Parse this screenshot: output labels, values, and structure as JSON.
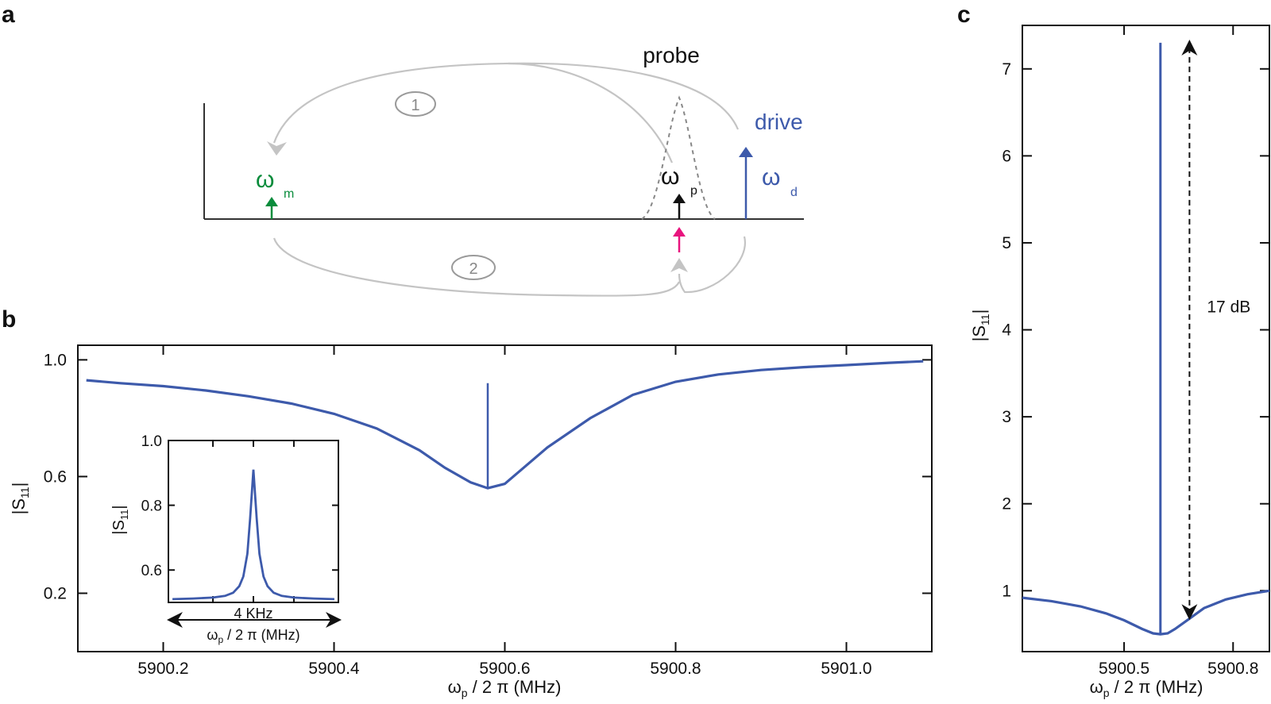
{
  "panels": {
    "a": "a",
    "b": "b",
    "c": "c"
  },
  "colors": {
    "trace": "#3d5aab",
    "mechanical": "#0a8c3c",
    "drive": "#3d5aab",
    "probe": "#111111",
    "pink_arrow": "#e8147e",
    "process_path": "#c4c4c4",
    "text": "#111111"
  },
  "schematic": {
    "probe_label": "probe",
    "drive_label": "drive",
    "omega_m": {
      "symbol": "ω",
      "sub": "m"
    },
    "omega_p": {
      "symbol": "ω",
      "sub": "p"
    },
    "omega_d": {
      "symbol": "ω",
      "sub": "d"
    },
    "process_1": "1",
    "process_2": "2"
  },
  "chart_data": [
    {
      "panel": "b",
      "type": "line",
      "xlabel": {
        "main": "ω",
        "sub": "p",
        "rest": " / 2 π (MHz)"
      },
      "ylabel": {
        "main": "|S",
        "sub": "11",
        "end": "|"
      },
      "xlim": [
        5900.1,
        5901.1
      ],
      "ylim": [
        0.0,
        1.05
      ],
      "xticks": [
        5900.2,
        5900.4,
        5900.6,
        5900.8,
        5901.0
      ],
      "xtick_labels": [
        "5900.2",
        "5900.4",
        "5900.6",
        "5900.8",
        "5901.0"
      ],
      "yticks": [
        0.2,
        0.6,
        1.0
      ],
      "ytick_labels": [
        "0.2",
        "0.6",
        "1.0"
      ],
      "series": [
        {
          "x": [
            5900.11,
            5900.15,
            5900.2,
            5900.25,
            5900.3,
            5900.35,
            5900.4,
            5900.45,
            5900.5,
            5900.53,
            5900.56,
            5900.58,
            5900.6,
            5900.62,
            5900.65,
            5900.7,
            5900.75,
            5900.8,
            5900.85,
            5900.9,
            5900.95,
            5901.0,
            5901.05,
            5901.09
          ],
          "y": [
            0.93,
            0.92,
            0.91,
            0.895,
            0.875,
            0.85,
            0.815,
            0.765,
            0.69,
            0.63,
            0.58,
            0.56,
            0.575,
            0.625,
            0.7,
            0.8,
            0.88,
            0.925,
            0.95,
            0.965,
            0.975,
            0.982,
            0.99,
            0.995
          ]
        }
      ],
      "peak": {
        "x": 5900.58,
        "y_base": 0.56,
        "y_top": 0.92
      },
      "inset": {
        "type": "line",
        "ylabel": {
          "main": "|S",
          "sub": "11",
          "end": "|"
        },
        "xlabel": {
          "main": "ω",
          "sub": "p",
          "rest": " / 2 π (MHz)"
        },
        "span_label": "4 KHz",
        "ylim": [
          0.5,
          1.0
        ],
        "yticks": [
          0.6,
          0.8,
          1.0
        ],
        "ytick_labels": [
          "0.6",
          "0.8",
          "1.0"
        ],
        "x": [
          -2,
          -1.5,
          -1,
          -0.7,
          -0.5,
          -0.35,
          -0.25,
          -0.15,
          -0.08,
          0,
          0.08,
          0.15,
          0.25,
          0.35,
          0.5,
          0.7,
          1,
          1.5,
          2
        ],
        "y": [
          0.51,
          0.512,
          0.515,
          0.52,
          0.53,
          0.55,
          0.58,
          0.65,
          0.76,
          0.91,
          0.76,
          0.65,
          0.58,
          0.55,
          0.53,
          0.52,
          0.515,
          0.512,
          0.51
        ]
      }
    },
    {
      "panel": "c",
      "type": "line",
      "xlabel": {
        "main": "ω",
        "sub": "p",
        "rest": " / 2 π (MHz)"
      },
      "ylabel": {
        "main": "|S",
        "sub": "11",
        "end": "|"
      },
      "xlim": [
        5900.22,
        5900.9
      ],
      "ylim": [
        0.3,
        7.5
      ],
      "xticks": [
        5900.5,
        5900.8
      ],
      "xtick_labels": [
        "5900.5",
        "5900.8"
      ],
      "yticks": [
        1,
        2,
        3,
        4,
        5,
        6,
        7
      ],
      "ytick_labels": [
        "1",
        "2",
        "3",
        "4",
        "5",
        "6",
        "7"
      ],
      "series": [
        {
          "x": [
            5900.22,
            5900.3,
            5900.38,
            5900.45,
            5900.5,
            5900.55,
            5900.58,
            5900.6,
            5900.62,
            5900.64,
            5900.68,
            5900.72,
            5900.78,
            5900.84,
            5900.9
          ],
          "y": [
            0.92,
            0.88,
            0.82,
            0.74,
            0.66,
            0.56,
            0.51,
            0.5,
            0.51,
            0.56,
            0.68,
            0.8,
            0.9,
            0.96,
            1.0
          ]
        }
      ],
      "peak": {
        "x": 5900.6,
        "y_base": 0.5,
        "y_top": 7.3
      },
      "annotation": {
        "text": "17 dB",
        "x": 5900.68,
        "y_top": 7.3,
        "y_bottom": 0.7
      }
    }
  ]
}
